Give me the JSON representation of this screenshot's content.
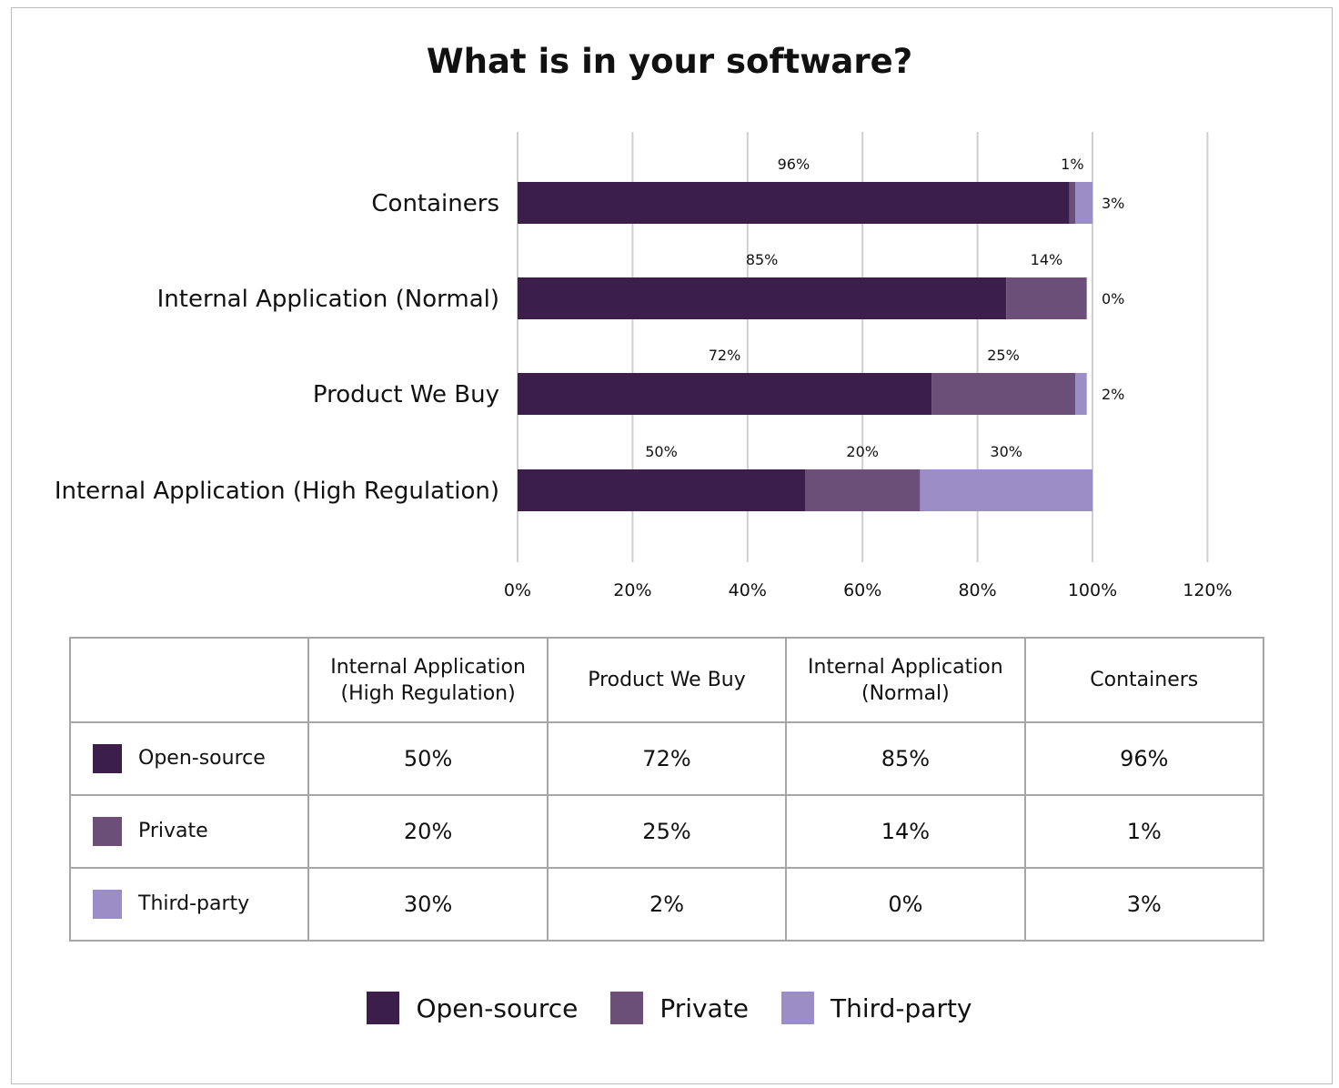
{
  "chart_data": {
    "type": "bar",
    "orientation": "horizontal",
    "stacked": true,
    "title": "What is in your software?",
    "categories": [
      "Containers",
      "Internal Application (Normal)",
      "Product We Buy",
      "Internal Application (High Regulation)"
    ],
    "series": [
      {
        "name": "Open-source",
        "color": "#3b1f4a",
        "values": [
          96,
          85,
          72,
          50
        ]
      },
      {
        "name": "Private",
        "color": "#6b4f78",
        "values": [
          1,
          14,
          25,
          20
        ]
      },
      {
        "name": "Third-party",
        "color": "#9b8dc5",
        "values": [
          3,
          0,
          2,
          30
        ]
      }
    ],
    "xlim": [
      0,
      120
    ],
    "xticks": [
      "0%",
      "20%",
      "40%",
      "60%",
      "80%",
      "100%",
      "120%"
    ],
    "xtick_values": [
      0,
      20,
      40,
      60,
      80,
      100,
      120
    ],
    "grid": "vertical",
    "legend": "bottom",
    "unit": "%"
  },
  "table": {
    "headers": [
      "",
      "Internal Application\n(High Regulation)",
      "Product We Buy",
      "Internal Application\n(Normal)",
      "Containers"
    ],
    "rows": [
      {
        "label": "Open-source",
        "color": "#3b1f4a",
        "cells": [
          "50%",
          "72%",
          "85%",
          "96%"
        ]
      },
      {
        "label": "Private",
        "color": "#6b4f78",
        "cells": [
          "20%",
          "25%",
          "14%",
          "1%"
        ]
      },
      {
        "label": "Third-party",
        "color": "#9b8dc5",
        "cells": [
          "30%",
          "2%",
          "0%",
          "3%"
        ]
      }
    ]
  }
}
